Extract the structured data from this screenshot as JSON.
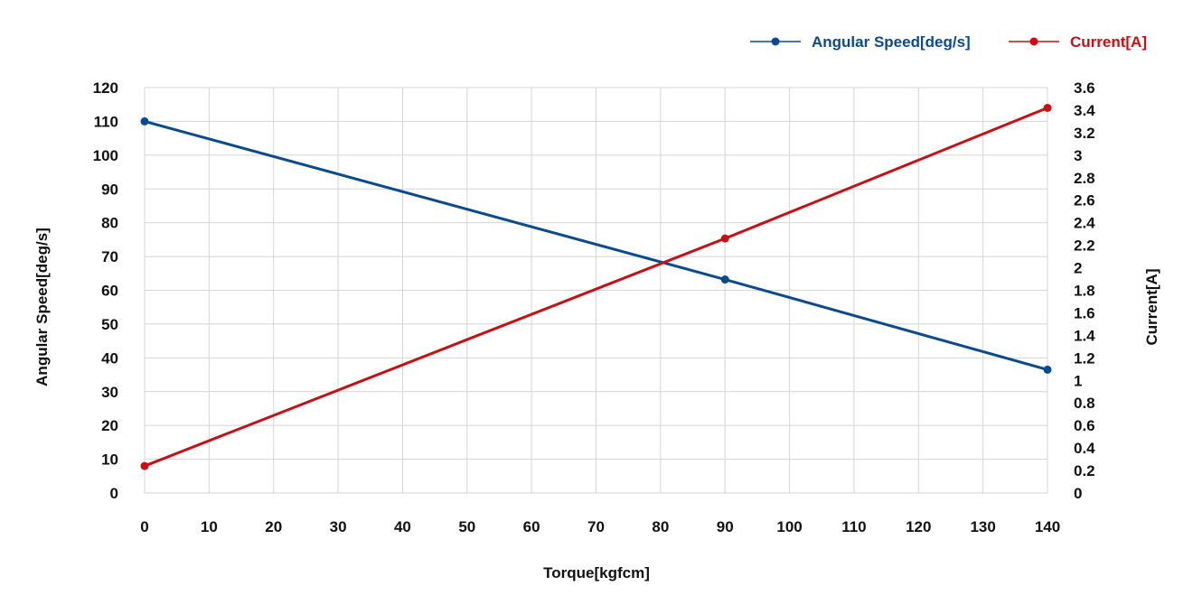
{
  "chart_data": {
    "type": "line",
    "x": [
      0,
      90,
      140
    ],
    "xlabel": "Torque[kgfcm]",
    "x_ticks": [
      "0",
      "10",
      "20",
      "30",
      "40",
      "50",
      "60",
      "70",
      "80",
      "90",
      "100",
      "110",
      "120",
      "130",
      "140"
    ],
    "ylabel_left": "Angular Speed[deg/s]",
    "ylim_left": [
      0,
      120
    ],
    "y_ticks_left": [
      "0",
      "10",
      "20",
      "30",
      "40",
      "50",
      "60",
      "70",
      "80",
      "90",
      "100",
      "110",
      "120"
    ],
    "ylabel_right": "Current[A]",
    "ylim_right": [
      0,
      3.6
    ],
    "y_ticks_right": [
      "0",
      "0.2",
      "0.4",
      "0.6",
      "0.8",
      "1",
      "1.2",
      "1.4",
      "1.6",
      "1.8",
      "2",
      "2.2",
      "2.4",
      "2.6",
      "2.8",
      "3",
      "3.2",
      "3.4",
      "3.6"
    ],
    "grid": true,
    "legend_position": "top-right",
    "series": [
      {
        "name": "Angular Speed[deg/s]",
        "axis": "left",
        "color": "#0b4a8e",
        "values": [
          110,
          63.2,
          36.5
        ]
      },
      {
        "name": "Current[A]",
        "axis": "right",
        "color": "#c80f14",
        "values": [
          0.24,
          2.26,
          3.42
        ]
      }
    ]
  }
}
